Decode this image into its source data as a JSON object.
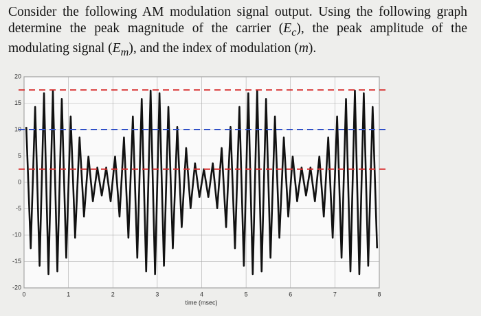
{
  "question": [
    "Consider the following AM modulation signal output. Using the following graph determine the peak magnitude of the carrier (",
    "E",
    "c",
    "), the peak amplitude of the modulating signal (",
    "E",
    "m",
    "), and the index of modulation (",
    "m",
    ")."
  ],
  "chart_data": {
    "type": "line",
    "xlabel": "time (msec)",
    "xlim": [
      0,
      8
    ],
    "xticks": [
      0,
      1,
      2,
      3,
      4,
      5,
      6,
      7,
      8
    ],
    "ylim": [
      -20,
      20
    ],
    "yticks": [
      -20,
      -15,
      -10,
      -5,
      0,
      5,
      10,
      15,
      20
    ],
    "grid": true,
    "x": [
      0.05,
      0.15,
      0.25,
      0.35,
      0.45,
      0.55,
      0.65,
      0.75,
      0.85,
      0.95,
      1.05,
      1.15,
      1.25,
      1.35,
      1.45,
      1.55,
      1.65,
      1.75,
      1.85,
      1.95,
      2.05,
      2.15,
      2.25,
      2.35,
      2.45,
      2.55,
      2.65,
      2.75,
      2.85,
      2.95,
      3.05,
      3.15,
      3.25,
      3.35,
      3.45,
      3.55,
      3.65,
      3.75,
      3.85,
      3.95,
      4.05,
      4.15,
      4.25,
      4.35,
      4.45,
      4.55,
      4.65,
      4.75,
      4.85,
      4.95,
      5.05,
      5.15,
      5.25,
      5.35,
      5.45,
      5.55,
      5.65,
      5.75,
      5.85,
      5.95,
      6.05,
      6.15,
      6.25,
      6.35,
      6.45,
      6.55,
      6.65,
      6.75,
      6.85,
      6.95,
      7.05,
      7.15,
      7.25,
      7.35,
      7.45,
      7.55,
      7.65,
      7.75,
      7.85,
      7.95
    ],
    "series": [
      {
        "color": "#111111",
        "values": [
          10.5,
          -12.5,
          14.3,
          -15.8,
          16.9,
          -17.4,
          17.4,
          -16.9,
          15.8,
          -14.3,
          12.5,
          -10.5,
          8.5,
          -6.5,
          4.9,
          -3.6,
          2.8,
          -2.5,
          2.8,
          -3.6,
          4.9,
          -6.5,
          8.5,
          -10.5,
          12.5,
          -14.3,
          15.8,
          -16.9,
          17.4,
          -17.4,
          16.9,
          -15.8,
          14.3,
          -12.5,
          10.5,
          -8.5,
          6.5,
          -4.9,
          3.6,
          -2.8,
          2.5,
          -2.8,
          3.6,
          -4.9,
          6.5,
          -8.5,
          10.5,
          -12.5,
          14.3,
          -15.8,
          16.9,
          -17.4,
          17.4,
          -16.9,
          15.8,
          -14.3,
          12.5,
          -10.5,
          8.5,
          -6.5,
          4.9,
          -3.6,
          2.8,
          -2.5,
          2.8,
          -3.6,
          4.9,
          -6.5,
          8.5,
          -10.5,
          12.5,
          -14.3,
          15.8,
          -16.9,
          17.4,
          -17.4,
          16.9,
          -15.8,
          14.3,
          -12.5
        ]
      }
    ],
    "reference_lines": [
      {
        "value": 17.5,
        "color": "#d83030"
      },
      {
        "value": 10,
        "color": "#3050c8"
      },
      {
        "value": 2.5,
        "color": "#d83030"
      }
    ]
  }
}
